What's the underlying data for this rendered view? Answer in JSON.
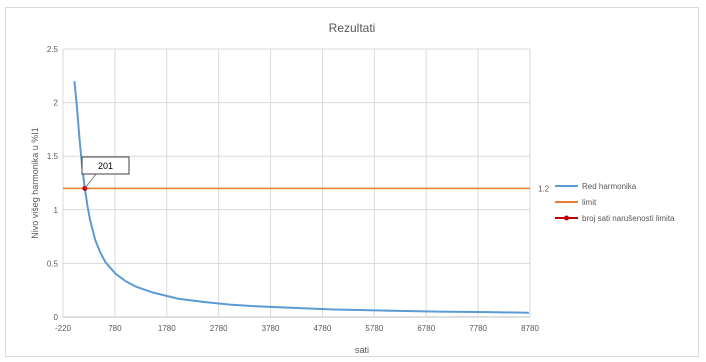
{
  "chart_data": {
    "type": "line",
    "title": "Rezultati",
    "xlabel": "sati",
    "ylabel": "Nivo višeg harmonika u %I1",
    "xlim": [
      -220,
      8780
    ],
    "ylim": [
      0,
      2.5
    ],
    "x_ticks": [
      -220,
      780,
      1780,
      2780,
      3780,
      4780,
      5780,
      6780,
      7780,
      8780
    ],
    "y_ticks": [
      0,
      0.5,
      1,
      1.5,
      2,
      2.5
    ],
    "grid": true,
    "legend_position": "right",
    "series": [
      {
        "name": "Red harmonika",
        "color": "#5b9bd5",
        "x": [
          1,
          50,
          100,
          150,
          201,
          250,
          300,
          400,
          500,
          600,
          800,
          1000,
          1200,
          1500,
          2000,
          2500,
          3000,
          3500,
          4000,
          5000,
          6000,
          7000,
          8000,
          8760
        ],
        "y": [
          2.2,
          1.95,
          1.65,
          1.4,
          1.2,
          1.04,
          0.91,
          0.72,
          0.6,
          0.51,
          0.4,
          0.33,
          0.28,
          0.23,
          0.17,
          0.14,
          0.115,
          0.1,
          0.09,
          0.07,
          0.06,
          0.05,
          0.045,
          0.04
        ]
      },
      {
        "name": "limit",
        "color": "#ed7d31",
        "x": [
          -220,
          8780
        ],
        "y": [
          1.2,
          1.2
        ]
      },
      {
        "name": "broj sati narušenosti limita",
        "color": "#c00000",
        "x": [
          201
        ],
        "y": [
          1.2
        ]
      }
    ],
    "annotations": [
      {
        "text": "201",
        "x": 201,
        "y": 1.2
      },
      {
        "text": "1.2",
        "x": 8780,
        "y": 1.2
      }
    ]
  }
}
